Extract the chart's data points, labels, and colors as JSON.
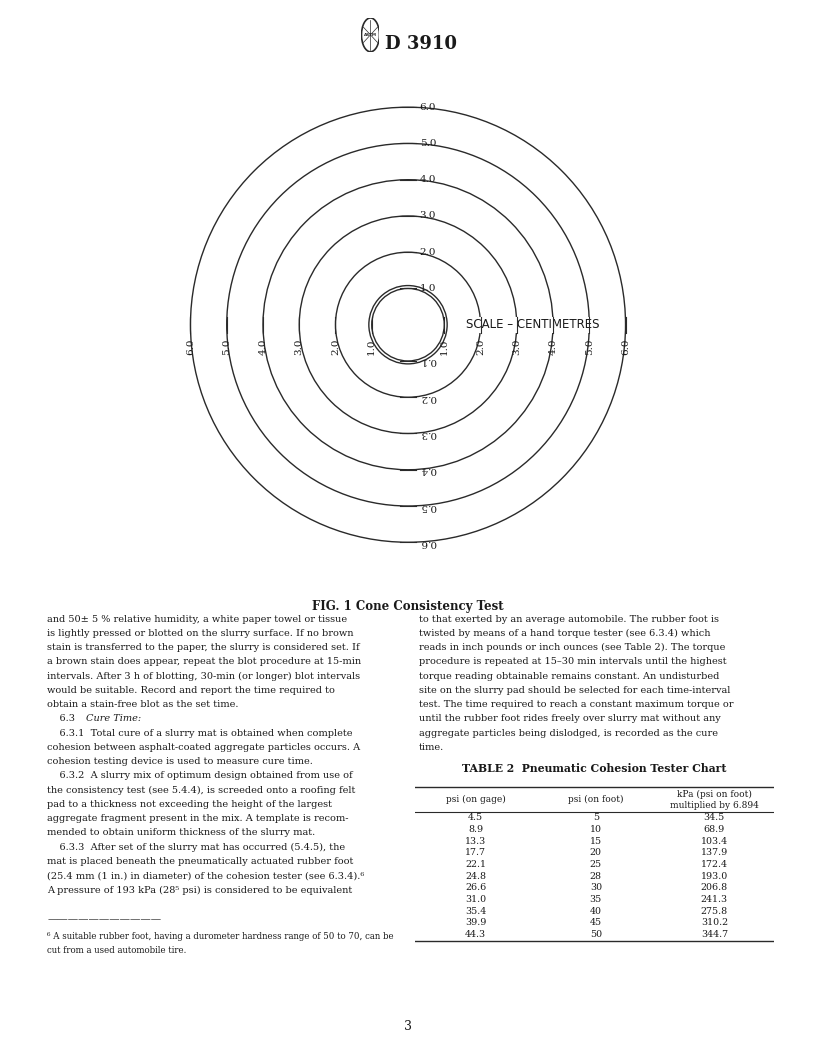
{
  "title": "D 3910",
  "fig_caption": "FIG. 1 Cone Consistency Test",
  "scale_label": "SCALE – CENTIMETRES",
  "circles_radii": [
    1.0,
    1.08,
    2.0,
    3.0,
    4.0,
    5.0,
    6.0
  ],
  "top_labels": [
    "6.0",
    "5.0",
    "4.0",
    "3.0",
    "2.0",
    "1.0"
  ],
  "bottom_labels": [
    "0.1",
    "0.2",
    "0.3",
    "0.4",
    "0.5",
    "0.6"
  ],
  "side_labels_left": [
    "6.0",
    "5.0",
    "4.0",
    "3.0",
    "2.0",
    "1.0"
  ],
  "side_labels_right": [
    "1.0",
    "2.0",
    "3.0",
    "4.0",
    "5.0",
    "6.0"
  ],
  "table_title": "TABLE 2  Pneumatic Cohesion Tester Chart",
  "table_headers": [
    "psi (on gage)",
    "psi (on foot)",
    "kPa (psi on foot)\nmultiplied by 6.894"
  ],
  "table_data": [
    [
      "4.5",
      "5",
      "34.5"
    ],
    [
      "8.9",
      "10",
      "68.9"
    ],
    [
      "13.3",
      "15",
      "103.4"
    ],
    [
      "17.7",
      "20",
      "137.9"
    ],
    [
      "22.1",
      "25",
      "172.4"
    ],
    [
      "24.8",
      "28",
      "193.0"
    ],
    [
      "26.6",
      "30",
      "206.8"
    ],
    [
      "31.0",
      "35",
      "241.3"
    ],
    [
      "35.4",
      "40",
      "275.8"
    ],
    [
      "39.9",
      "45",
      "310.2"
    ],
    [
      "44.3",
      "50",
      "344.7"
    ]
  ],
  "bg_color": "#ffffff",
  "text_color": "#1a1a1a",
  "line_color": "#2a2a2a"
}
